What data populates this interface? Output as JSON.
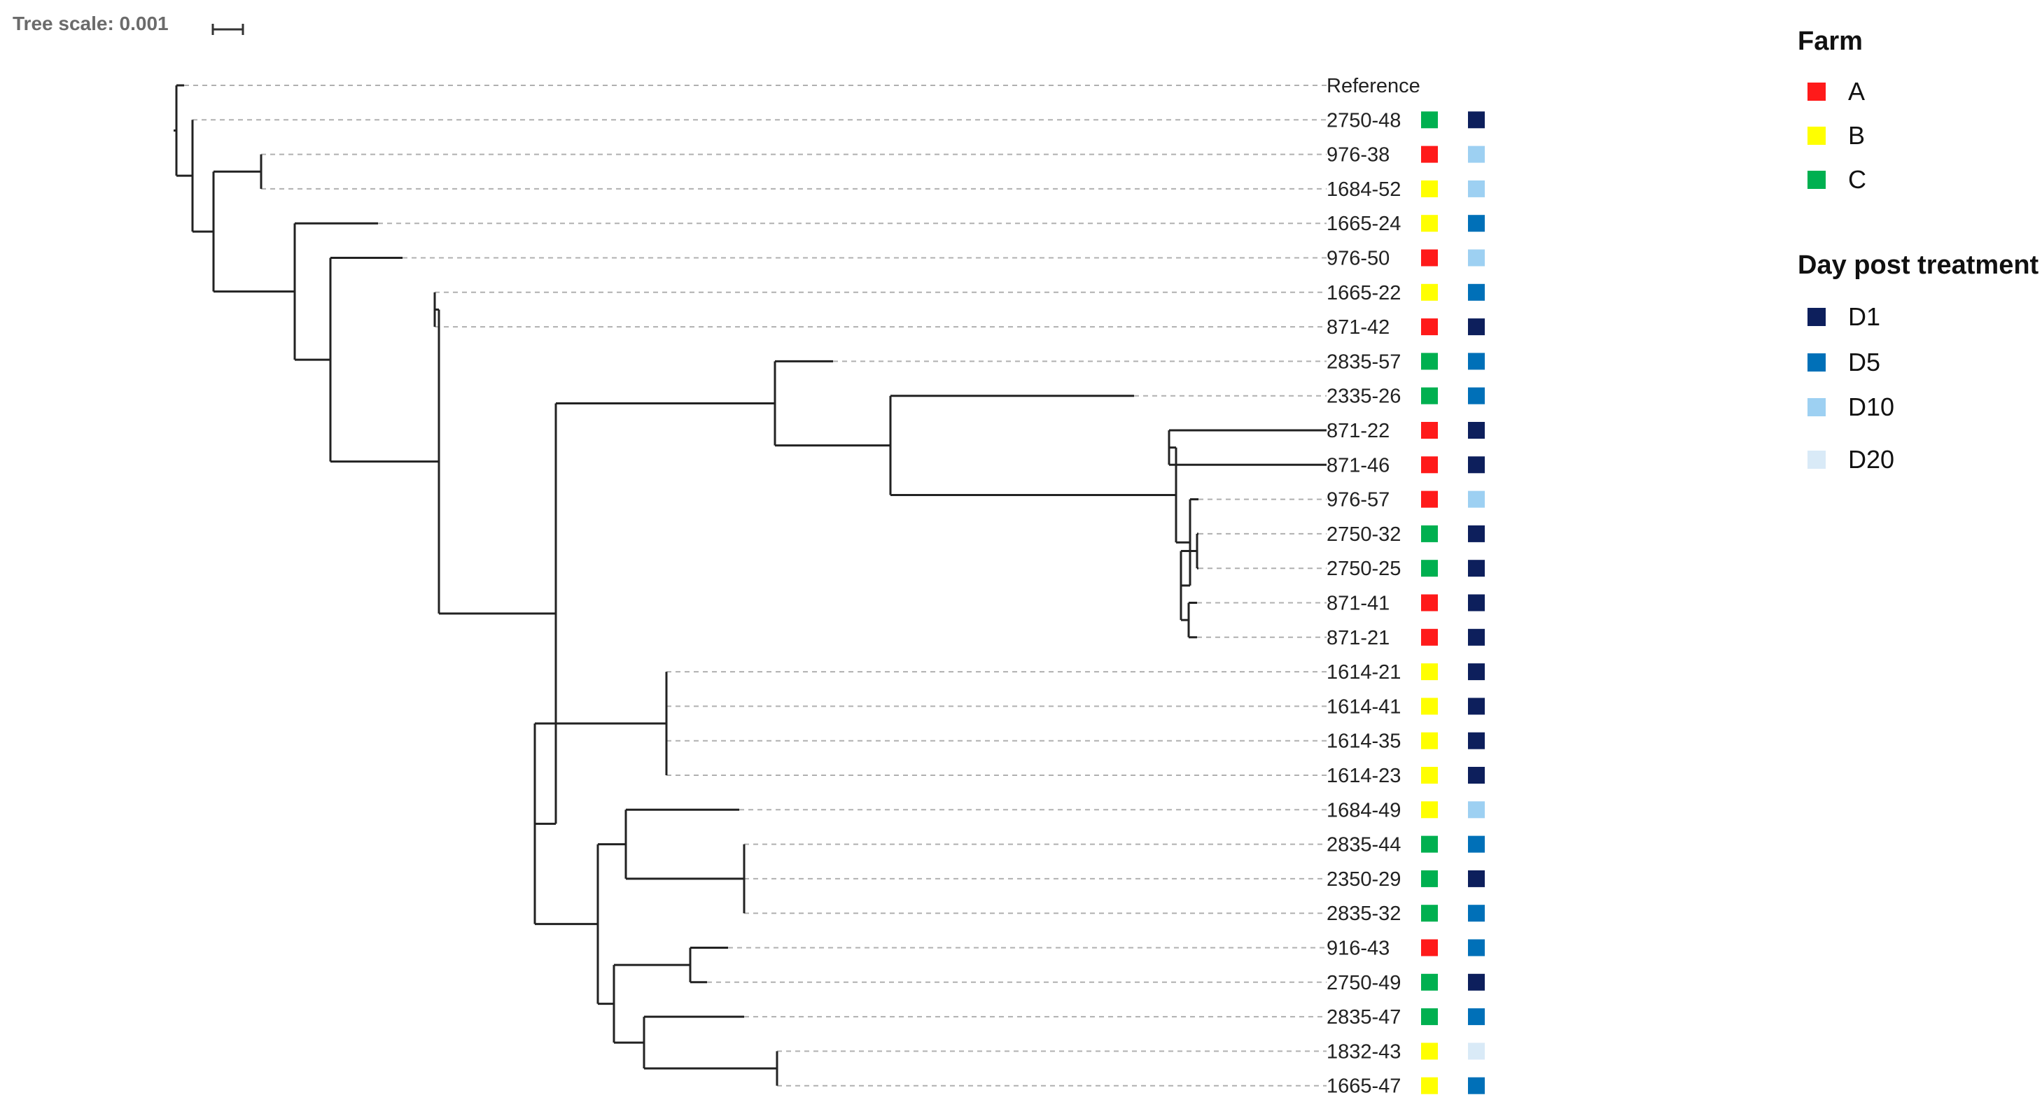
{
  "scale": {
    "title": "Tree scale: 0.001"
  },
  "legend": {
    "farm": {
      "title": "Farm",
      "items": [
        {
          "id": "A",
          "label": "A",
          "color": "#ff1a1a"
        },
        {
          "id": "B",
          "label": "B",
          "color": "#ffff00"
        },
        {
          "id": "C",
          "label": "C",
          "color": "#00b050"
        }
      ]
    },
    "day": {
      "title": "Day post treatment",
      "items": [
        {
          "id": "D1",
          "label": "D1",
          "color": "#0d1f5c"
        },
        {
          "id": "D5",
          "label": "D5",
          "color": "#0070b8"
        },
        {
          "id": "D10",
          "label": "D10",
          "color": "#9dd0f2"
        },
        {
          "id": "D20",
          "label": "D20",
          "color": "#d9eaf7"
        }
      ]
    }
  },
  "leaves": [
    {
      "label": "Reference",
      "farm": null,
      "day": null
    },
    {
      "label": "2750-48",
      "farm": "C",
      "day": "D1"
    },
    {
      "label": "976-38",
      "farm": "A",
      "day": "D10"
    },
    {
      "label": "1684-52",
      "farm": "B",
      "day": "D10"
    },
    {
      "label": "1665-24",
      "farm": "B",
      "day": "D5"
    },
    {
      "label": "976-50",
      "farm": "A",
      "day": "D10"
    },
    {
      "label": "1665-22",
      "farm": "B",
      "day": "D5"
    },
    {
      "label": "871-42",
      "farm": "A",
      "day": "D1"
    },
    {
      "label": "2835-57",
      "farm": "C",
      "day": "D5"
    },
    {
      "label": "2335-26",
      "farm": "C",
      "day": "D5"
    },
    {
      "label": "871-22",
      "farm": "A",
      "day": "D1"
    },
    {
      "label": "871-46",
      "farm": "A",
      "day": "D1"
    },
    {
      "label": "976-57",
      "farm": "A",
      "day": "D10"
    },
    {
      "label": "2750-32",
      "farm": "C",
      "day": "D1"
    },
    {
      "label": "2750-25",
      "farm": "C",
      "day": "D1"
    },
    {
      "label": "871-41",
      "farm": "A",
      "day": "D1"
    },
    {
      "label": "871-21",
      "farm": "A",
      "day": "D1"
    },
    {
      "label": "1614-21",
      "farm": "B",
      "day": "D1"
    },
    {
      "label": "1614-41",
      "farm": "B",
      "day": "D1"
    },
    {
      "label": "1614-35",
      "farm": "B",
      "day": "D1"
    },
    {
      "label": "1614-23",
      "farm": "B",
      "day": "D1"
    },
    {
      "label": "1684-49",
      "farm": "B",
      "day": "D10"
    },
    {
      "label": "2835-44",
      "farm": "C",
      "day": "D5"
    },
    {
      "label": "2350-29",
      "farm": "C",
      "day": "D1"
    },
    {
      "label": "2835-32",
      "farm": "C",
      "day": "D5"
    },
    {
      "label": "916-43",
      "farm": "A",
      "day": "D5"
    },
    {
      "label": "2750-49",
      "farm": "C",
      "day": "D1"
    },
    {
      "label": "2835-47",
      "farm": "C",
      "day": "D5"
    },
    {
      "label": "1832-43",
      "farm": "B",
      "day": "D20"
    },
    {
      "label": "1665-47",
      "farm": "B",
      "day": "D5"
    }
  ]
}
